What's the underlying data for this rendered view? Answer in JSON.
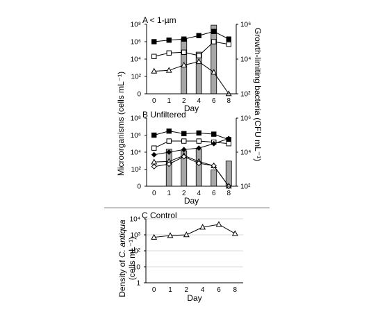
{
  "chart_data": [
    {
      "type": "line",
      "panel": "A",
      "title": "A  < 1-µm",
      "x": [
        "0",
        "1",
        "2",
        "4",
        "6",
        "8"
      ],
      "xlabel": "Day",
      "ylabel": "Microorganisms (cells mL⁻¹)",
      "y_scale": "log",
      "ylim": [
        1,
        100000000
      ],
      "y_ticks": [
        "0",
        "10²",
        "10⁴",
        "10⁶",
        "10⁸"
      ],
      "y2label": "Growth-limiting bacteria (CFU mL⁻¹)",
      "y2_scale": "log",
      "y2lim": [
        100,
        1000000
      ],
      "y2_ticks": [
        "10²",
        "10⁴",
        "10⁶"
      ],
      "series": [
        {
          "marker": "filled-square",
          "values": [
            1000000,
            1500000,
            2000000,
            5000000,
            15000000,
            2000000
          ]
        },
        {
          "marker": "open-square",
          "values": [
            20000,
            50000,
            60000,
            25000,
            1000000,
            500000
          ]
        },
        {
          "marker": "open-triangle",
          "values": [
            400,
            500,
            2000,
            5000,
            300,
            1
          ]
        }
      ],
      "bars": {
        "axis": "y2",
        "values": [
          null,
          null,
          150000,
          25000,
          900000,
          null
        ]
      }
    },
    {
      "type": "line",
      "panel": "B",
      "title": "B  Unfiltered",
      "x": [
        "0",
        "1",
        "2",
        "4",
        "6",
        "8"
      ],
      "xlabel": "Day",
      "y_scale": "log",
      "ylim": [
        1,
        100000000
      ],
      "y_ticks": [
        "0",
        "10²",
        "10⁴",
        "10⁶",
        "10⁸"
      ],
      "y2_scale": "log",
      "y2lim": [
        100,
        1000000
      ],
      "y2_ticks": [
        "10²",
        "10⁴",
        "10⁶"
      ],
      "series": [
        {
          "marker": "filled-square",
          "values": [
            1000000,
            3000000,
            1500000,
            1800000,
            1300000,
            300000
          ]
        },
        {
          "marker": "open-square",
          "values": [
            30000,
            200000,
            200000,
            200000,
            150000,
            100000
          ]
        },
        {
          "marker": "filled-diamond",
          "values": [
            5000,
            10000,
            20000,
            30000,
            100000,
            400000
          ]
        },
        {
          "marker": "open-triangle",
          "values": [
            700,
            800,
            4000,
            800,
            250,
            1
          ]
        },
        {
          "marker": "open-diamond",
          "values": [
            200,
            400,
            3000,
            500,
            250,
            1
          ]
        }
      ],
      "bars": {
        "axis": "y2",
        "values": [
          null,
          15000,
          12000,
          15000,
          900,
          3000
        ]
      }
    },
    {
      "type": "line",
      "panel": "C",
      "title": "C Control",
      "x": [
        "0",
        "1",
        "2",
        "4",
        "6",
        "8"
      ],
      "xlabel": "Day",
      "ylabel": "Density of C. antiqua (cells mL⁻¹)",
      "y_scale": "log",
      "ylim": [
        1,
        10000
      ],
      "y_ticks": [
        "1",
        "10",
        "10²",
        "10³",
        "10⁴"
      ],
      "grid": true,
      "series": [
        {
          "marker": "open-triangle",
          "values": [
            700,
            900,
            1000,
            3000,
            4500,
            1200
          ]
        }
      ]
    }
  ]
}
